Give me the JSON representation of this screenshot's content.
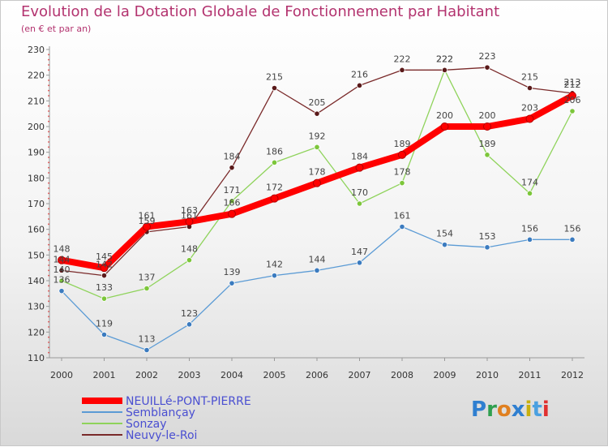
{
  "header": {
    "title": "Evolution de la Dotation Globale de Fonctionnement par Habitant",
    "subtitle": "(en € et par an)"
  },
  "logo": {
    "text": "Proxiti"
  },
  "colors": {
    "accent": "#b3336f",
    "legend_text": "#4a4fd1",
    "series": [
      "#ff0000",
      "#5b9bd5",
      "#8fd35b",
      "#7a2a2a"
    ],
    "markers": [
      "#ff0000",
      "#3b7bbf",
      "#7cc63a",
      "#5a1a1a"
    ]
  },
  "chart_data": {
    "type": "line",
    "title": "Evolution de la Dotation Globale de Fonctionnement par Habitant",
    "subtitle": "(en € et par an)",
    "xlabel": "",
    "ylabel": "",
    "categories": [
      "2000",
      "2001",
      "2002",
      "2003",
      "2004",
      "2005",
      "2006",
      "2007",
      "2008",
      "2009",
      "2010",
      "2011",
      "2012"
    ],
    "yticks": [
      110,
      120,
      130,
      140,
      150,
      160,
      170,
      180,
      190,
      200,
      210,
      220,
      230
    ],
    "ylim": [
      110,
      230
    ],
    "grid": false,
    "legend_position": "bottom-left",
    "series": [
      {
        "name": "NEUILLé-PONT-PIERRE",
        "values": [
          148,
          145,
          161,
          163,
          166,
          172,
          178,
          184,
          189,
          200,
          200,
          203,
          212
        ]
      },
      {
        "name": "Semblançay",
        "values": [
          136,
          119,
          113,
          123,
          139,
          142,
          144,
          147,
          161,
          154,
          153,
          156,
          156
        ]
      },
      {
        "name": "Sonzay",
        "values": [
          140,
          133,
          137,
          148,
          171,
          186,
          192,
          170,
          178,
          222,
          189,
          174,
          206
        ]
      },
      {
        "name": "Neuvy-le-Roi",
        "values": [
          144,
          142,
          159,
          161,
          184,
          215,
          205,
          216,
          222,
          222,
          223,
          215,
          213
        ]
      }
    ]
  }
}
